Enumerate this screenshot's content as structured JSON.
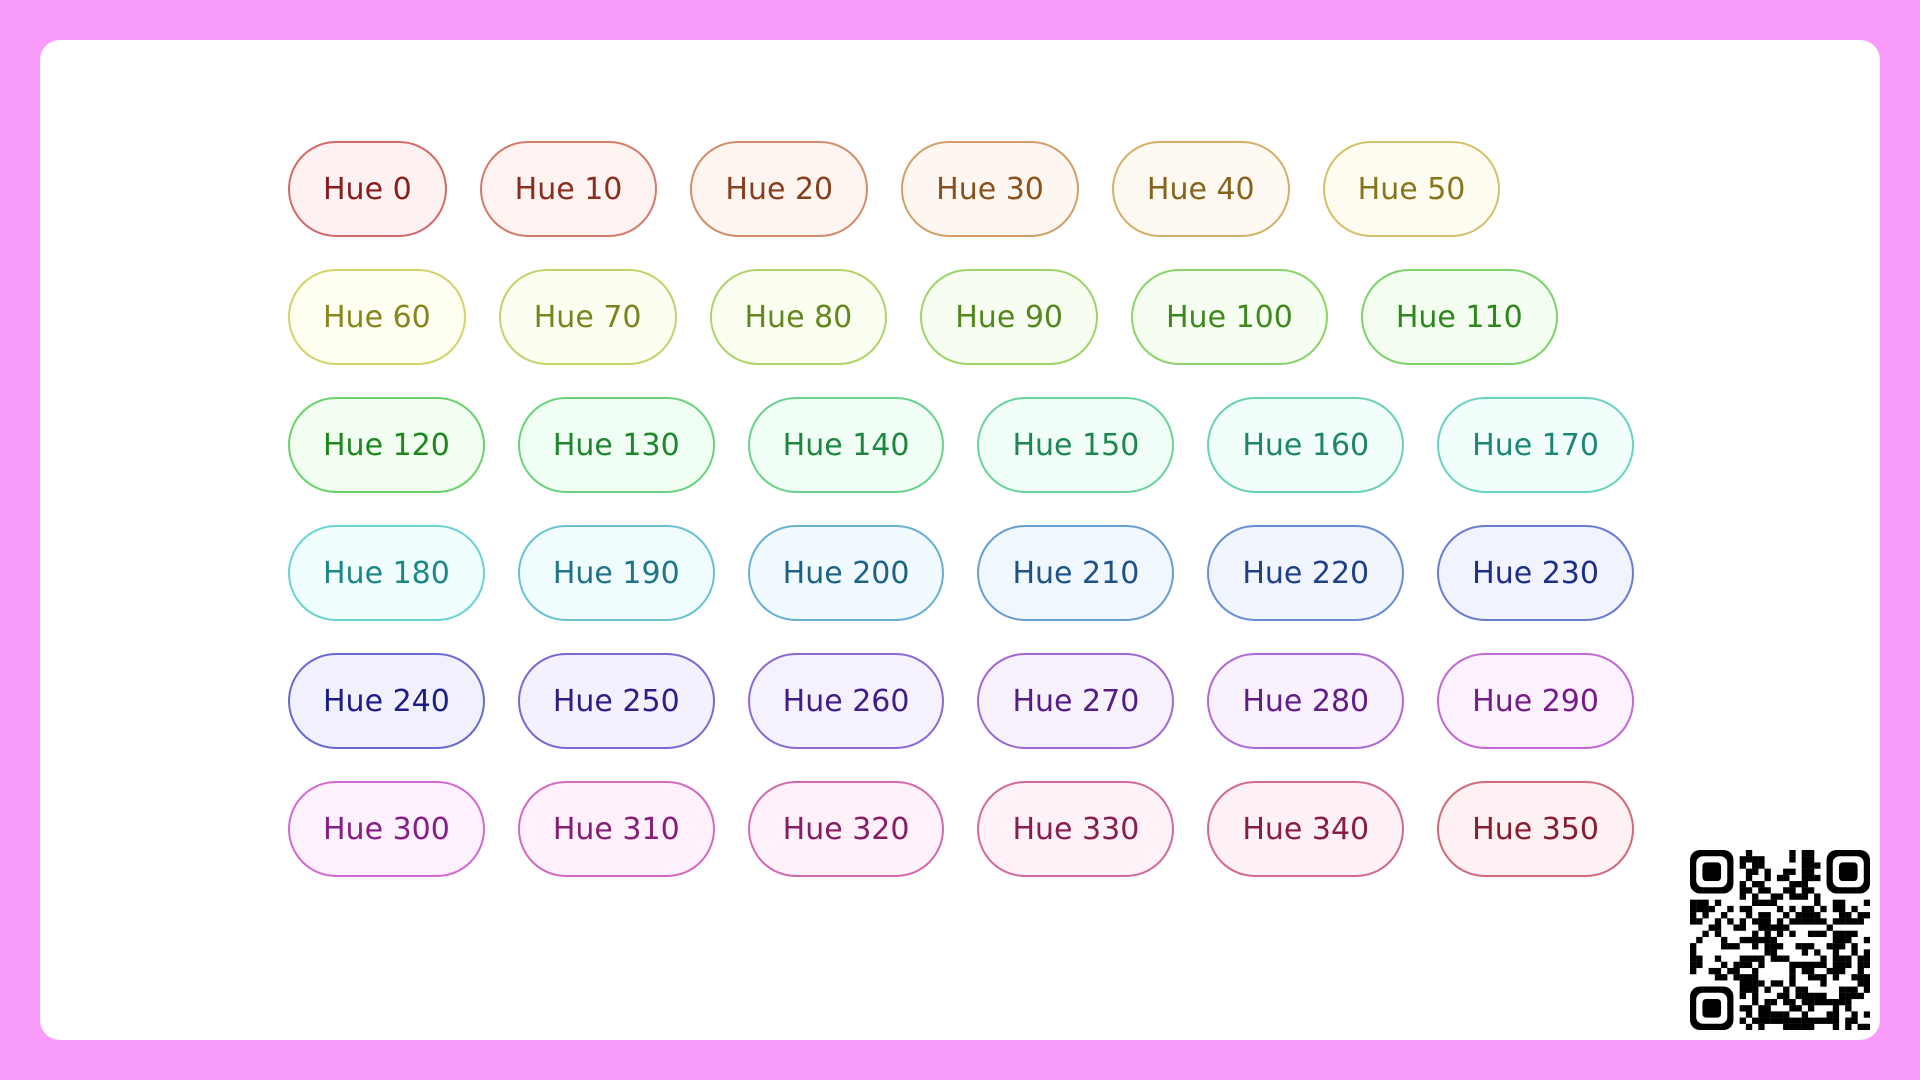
{
  "pills": [
    [
      {
        "label": "Hue 0",
        "hue": 0
      },
      {
        "label": "Hue 10",
        "hue": 10
      },
      {
        "label": "Hue 20",
        "hue": 20
      },
      {
        "label": "Hue 30",
        "hue": 30
      },
      {
        "label": "Hue 40",
        "hue": 40
      },
      {
        "label": "Hue 50",
        "hue": 50
      }
    ],
    [
      {
        "label": "Hue 60",
        "hue": 60
      },
      {
        "label": "Hue 70",
        "hue": 70
      },
      {
        "label": "Hue 80",
        "hue": 80
      },
      {
        "label": "Hue 90",
        "hue": 90
      },
      {
        "label": "Hue 100",
        "hue": 100
      },
      {
        "label": "Hue 110",
        "hue": 110
      }
    ],
    [
      {
        "label": "Hue 120",
        "hue": 120
      },
      {
        "label": "Hue 130",
        "hue": 130
      },
      {
        "label": "Hue 140",
        "hue": 140
      },
      {
        "label": "Hue 150",
        "hue": 150
      },
      {
        "label": "Hue 160",
        "hue": 160
      },
      {
        "label": "Hue 170",
        "hue": 170
      }
    ],
    [
      {
        "label": "Hue 180",
        "hue": 180
      },
      {
        "label": "Hue 190",
        "hue": 190
      },
      {
        "label": "Hue 200",
        "hue": 200
      },
      {
        "label": "Hue 210",
        "hue": 210
      },
      {
        "label": "Hue 220",
        "hue": 220
      },
      {
        "label": "Hue 230",
        "hue": 230
      }
    ],
    [
      {
        "label": "Hue 240",
        "hue": 240
      },
      {
        "label": "Hue 250",
        "hue": 250
      },
      {
        "label": "Hue 260",
        "hue": 260
      },
      {
        "label": "Hue 270",
        "hue": 270
      },
      {
        "label": "Hue 280",
        "hue": 280
      },
      {
        "label": "Hue 290",
        "hue": 290
      }
    ],
    [
      {
        "label": "Hue 300",
        "hue": 300
      },
      {
        "label": "Hue 310",
        "hue": 310
      },
      {
        "label": "Hue 320",
        "hue": 320
      },
      {
        "label": "Hue 330",
        "hue": 330
      },
      {
        "label": "Hue 340",
        "hue": 340
      },
      {
        "label": "Hue 350",
        "hue": 350
      }
    ]
  ],
  "colors": {
    "frame": "#f99bf8",
    "card": "#ffffff"
  },
  "qr_code": {
    "icon": "qr-code-icon"
  }
}
